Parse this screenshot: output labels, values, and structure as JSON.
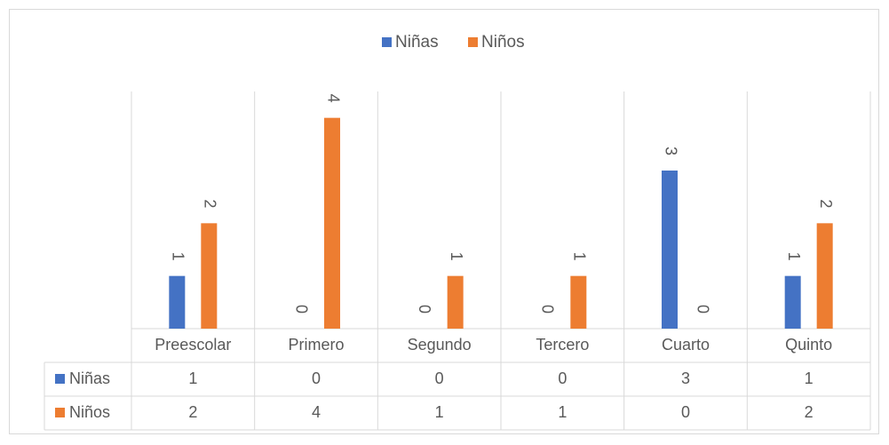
{
  "chart_data": {
    "type": "bar",
    "categories": [
      "Preescolar",
      "Primero",
      "Segundo",
      "Tercero",
      "Cuarto",
      "Quinto"
    ],
    "series": [
      {
        "name": "Niñas",
        "color": "#4472c4",
        "values": [
          1,
          0,
          0,
          0,
          3,
          1
        ]
      },
      {
        "name": "Niños",
        "color": "#ed7d31",
        "values": [
          2,
          4,
          1,
          1,
          0,
          2
        ]
      }
    ],
    "ylim": [
      0,
      4.5
    ],
    "legend": "top",
    "data_table": true
  }
}
